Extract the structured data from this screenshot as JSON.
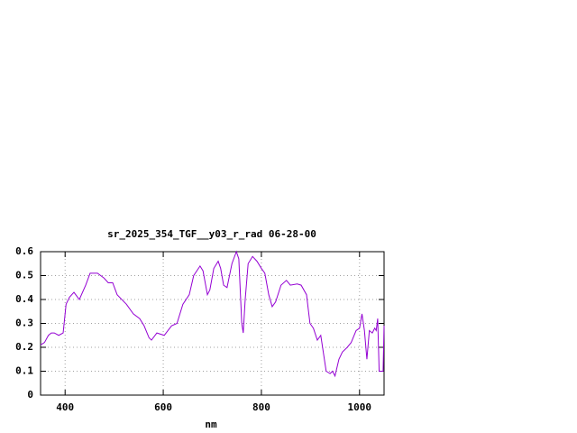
{
  "chart_data": {
    "type": "line",
    "title": "sr_2025_354_TGF__y03_r_rad 06-28-00",
    "x_label": "nm",
    "xlim": [
      350,
      1050
    ],
    "ylim": [
      0,
      0.6
    ],
    "xticks": [
      400,
      600,
      800,
      1000
    ],
    "yticks": [
      0,
      0.1,
      0.2,
      0.3,
      0.4,
      0.5,
      0.6
    ],
    "grid": true,
    "series": [
      {
        "color": "#9400d3",
        "x": [
          350,
          358,
          366,
          372,
          378,
          387,
          396,
          402,
          409,
          418,
          429,
          442,
          451,
          466,
          479,
          488,
          497,
          506,
          525,
          539,
          552,
          561,
          571,
          576,
          587,
          602,
          617,
          628,
          640,
          653,
          662,
          675,
          681,
          690,
          695,
          703,
          712,
          717,
          723,
          730,
          740,
          749,
          754,
          760,
          763,
          767,
          773,
          782,
          791,
          800,
          807,
          815,
          822,
          829,
          840,
          851,
          859,
          873,
          881,
          892,
          899,
          906,
          914,
          921,
          932,
          940,
          945,
          950,
          958,
          965,
          975,
          983,
          993,
          1000,
          1005,
          1010,
          1015,
          1020,
          1026,
          1031,
          1034,
          1037,
          1040,
          1048,
          1050
        ],
        "values": [
          0.21,
          0.22,
          0.25,
          0.26,
          0.26,
          0.25,
          0.26,
          0.38,
          0.41,
          0.43,
          0.4,
          0.46,
          0.51,
          0.51,
          0.49,
          0.47,
          0.47,
          0.42,
          0.38,
          0.34,
          0.32,
          0.29,
          0.24,
          0.23,
          0.26,
          0.25,
          0.29,
          0.3,
          0.38,
          0.42,
          0.5,
          0.54,
          0.52,
          0.42,
          0.44,
          0.53,
          0.56,
          0.53,
          0.46,
          0.45,
          0.55,
          0.6,
          0.57,
          0.3,
          0.26,
          0.4,
          0.55,
          0.58,
          0.56,
          0.53,
          0.51,
          0.42,
          0.37,
          0.39,
          0.46,
          0.48,
          0.46,
          0.465,
          0.46,
          0.42,
          0.3,
          0.28,
          0.23,
          0.25,
          0.1,
          0.09,
          0.1,
          0.08,
          0.15,
          0.18,
          0.2,
          0.22,
          0.27,
          0.28,
          0.34,
          0.27,
          0.15,
          0.27,
          0.26,
          0.28,
          0.27,
          0.32,
          0.1,
          0.1,
          0.29
        ]
      }
    ]
  }
}
